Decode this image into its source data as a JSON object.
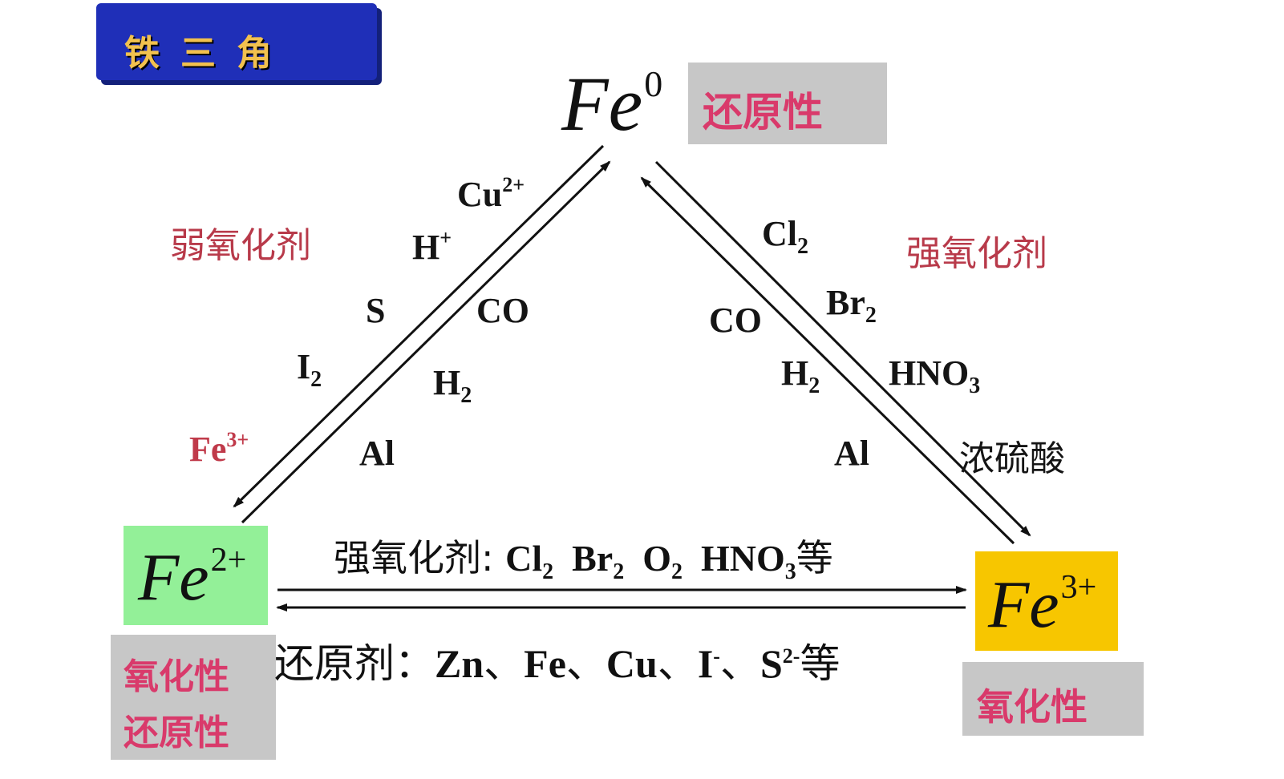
{
  "title": "铁三角",
  "nodes": {
    "fe0": {
      "base": "Fe",
      "sup": "0",
      "label": "还原性",
      "label_bg": "#c7c7c7"
    },
    "fe2": {
      "base": "Fe",
      "sup": "2+",
      "bg": "#93f098",
      "label1": "氧化性",
      "label2": "还原性",
      "label_bg": "#c7c7c7"
    },
    "fe3": {
      "base": "Fe",
      "sup": "3+",
      "bg": "#f7c600",
      "label": "氧化性",
      "label_bg": "#c7c7c7"
    }
  },
  "left_edge": {
    "category": "弱氧化剂",
    "outer_reagents": [
      {
        "base": "Cu",
        "sup": "2+"
      },
      {
        "base": "H",
        "sup": "+"
      },
      {
        "base": "S"
      },
      {
        "base": "I",
        "sub": "2"
      }
    ],
    "fe3_label": {
      "base": "Fe",
      "sup": "3+"
    },
    "inner_reagents": [
      {
        "base": "CO"
      },
      {
        "base": "H",
        "sub": "2"
      },
      {
        "base": "Al"
      }
    ]
  },
  "right_edge": {
    "category": "强氧化剂",
    "outer_reagents": [
      {
        "base": "Cl",
        "sub": "2"
      },
      {
        "base": "Br",
        "sub": "2"
      },
      {
        "base": "HNO",
        "sub": "3"
      },
      {
        "text": "浓硫酸"
      }
    ],
    "inner_reagents": [
      {
        "base": "CO"
      },
      {
        "base": "H",
        "sub": "2"
      },
      {
        "base": "Al"
      }
    ]
  },
  "bottom_edge": {
    "top_prefix": "强氧化剂: ",
    "top_items": [
      {
        "base": "Cl",
        "sub": "2"
      },
      {
        "base": "Br",
        "sub": "2"
      },
      {
        "base": "O",
        "sub": "2"
      },
      {
        "base": "HNO",
        "sub": "3"
      }
    ],
    "top_suffix": "等",
    "bottom_prefix": "还原剂：",
    "bottom_items": [
      {
        "base": "Zn"
      },
      {
        "base": "Fe"
      },
      {
        "base": "Cu"
      },
      {
        "base": "I",
        "sup": "-"
      },
      {
        "base": "S",
        "sup": "2-"
      }
    ],
    "separator": "、",
    "bottom_suffix": "等"
  }
}
